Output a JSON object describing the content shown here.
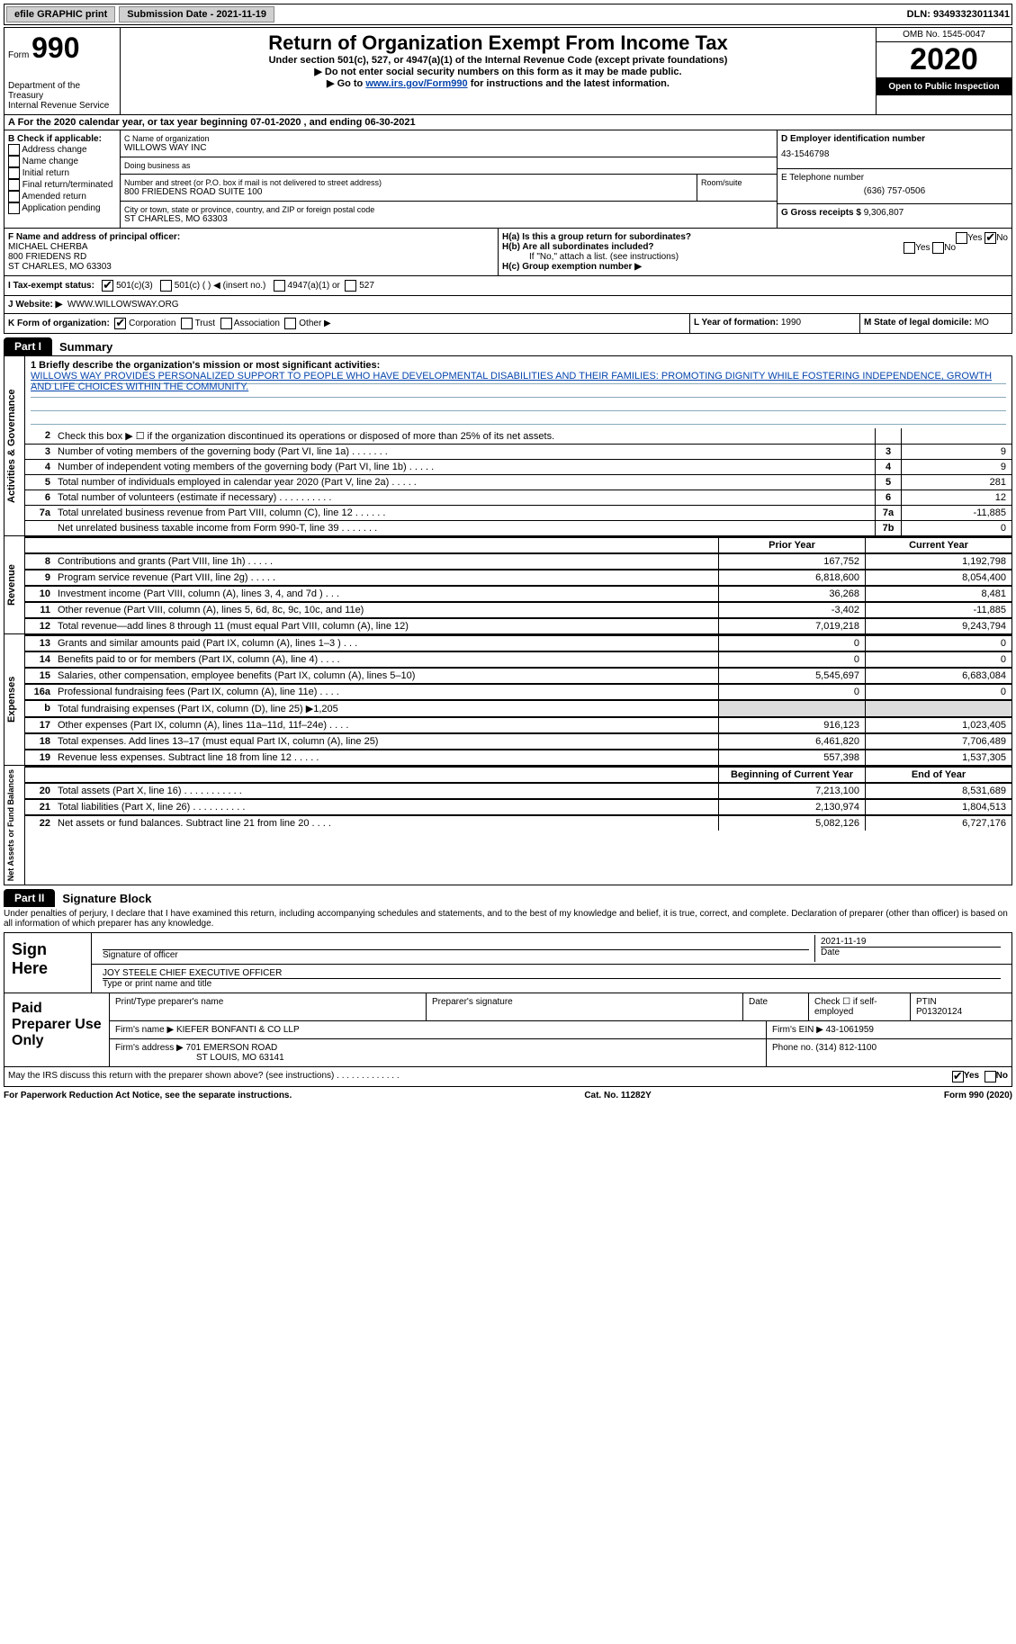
{
  "topbar": {
    "efile": "efile GRAPHIC print",
    "submission_label": "Submission Date - 2021-11-19",
    "dln_label": "DLN: 93493323011341"
  },
  "header": {
    "form_label": "Form",
    "form_number": "990",
    "dept1": "Department of the Treasury",
    "dept2": "Internal Revenue Service",
    "title": "Return of Organization Exempt From Income Tax",
    "subtitle": "Under section 501(c), 527, or 4947(a)(1) of the Internal Revenue Code (except private foundations)",
    "note1": "▶ Do not enter social security numbers on this form as it may be made public.",
    "note2_pre": "▶ Go to ",
    "note2_link": "www.irs.gov/Form990",
    "note2_post": " for instructions and the latest information.",
    "omb": "OMB No. 1545-0047",
    "year": "2020",
    "inspect": "Open to Public Inspection"
  },
  "row_a": "A For the 2020 calendar year, or tax year beginning 07-01-2020    , and ending 06-30-2021",
  "col_b": {
    "hdr": "B Check if applicable:",
    "opts": [
      "Address change",
      "Name change",
      "Initial return",
      "Final return/terminated",
      "Amended return",
      "Application pending"
    ]
  },
  "col_c": {
    "name_lbl": "C Name of organization",
    "name": "WILLOWS WAY INC",
    "dba_lbl": "Doing business as",
    "dba": "",
    "addr_lbl": "Number and street (or P.O. box if mail is not delivered to street address)",
    "addr": "800 FRIEDENS ROAD SUITE 100",
    "room_lbl": "Room/suite",
    "city_lbl": "City or town, state or province, country, and ZIP or foreign postal code",
    "city": "ST CHARLES, MO  63303"
  },
  "col_de": {
    "d_lbl": "D Employer identification number",
    "d_val": "43-1546798",
    "e_lbl": "E Telephone number",
    "e_val": "(636) 757-0506",
    "g_lbl": "G Gross receipts $",
    "g_val": "9,306,807"
  },
  "f": {
    "lbl": "F Name and address of principal officer:",
    "name": "MICHAEL CHERBA",
    "addr1": "800 FRIEDENS RD",
    "addr2": "ST CHARLES, MO  63303"
  },
  "h": {
    "a": "H(a)  Is this a group return for subordinates?",
    "a_yes": "Yes",
    "a_no": "No",
    "b": "H(b)  Are all subordinates included?",
    "b_yes": "Yes",
    "b_no": "No",
    "b_note": "If \"No,\" attach a list. (see instructions)",
    "c": "H(c)  Group exemption number ▶"
  },
  "i": {
    "lbl": "I   Tax-exempt status:",
    "o1": "501(c)(3)",
    "o2": "501(c) (  ) ◀ (insert no.)",
    "o3": "4947(a)(1) or",
    "o4": "527"
  },
  "j": {
    "lbl": "J   Website: ▶",
    "val": "WWW.WILLOWSWAY.ORG"
  },
  "k": {
    "lbl": "K Form of organization:",
    "o1": "Corporation",
    "o2": "Trust",
    "o3": "Association",
    "o4": "Other ▶"
  },
  "l": {
    "lbl": "L Year of formation:",
    "val": "1990"
  },
  "m": {
    "lbl": "M State of legal domicile:",
    "val": "MO"
  },
  "part1": {
    "tab": "Part I",
    "title": "Summary"
  },
  "mission": {
    "lbl": "1  Briefly describe the organization's mission or most significant activities:",
    "txt": "WILLOWS WAY PROVIDES PERSONALIZED SUPPORT TO PEOPLE WHO HAVE DEVELOPMENTAL DISABILITIES AND THEIR FAMILIES: PROMOTING DIGNITY WHILE FOSTERING INDEPENDENCE, GROWTH AND LIFE CHOICES WITHIN THE COMMUNITY."
  },
  "gov_lines": [
    {
      "n": "2",
      "t": "Check this box ▶ ☐  if the organization discontinued its operations or disposed of more than 25% of its net assets.",
      "b": "",
      "v": ""
    },
    {
      "n": "3",
      "t": "Number of voting members of the governing body (Part VI, line 1a)   .    .    .    .    .    .    .",
      "b": "3",
      "v": "9"
    },
    {
      "n": "4",
      "t": "Number of independent voting members of the governing body (Part VI, line 1b)  .    .    .    .    .",
      "b": "4",
      "v": "9"
    },
    {
      "n": "5",
      "t": "Total number of individuals employed in calendar year 2020 (Part V, line 2a)   .    .    .    .    .",
      "b": "5",
      "v": "281"
    },
    {
      "n": "6",
      "t": "Total number of volunteers (estimate if necessary)   .    .    .    .    .    .    .    .    .    .",
      "b": "6",
      "v": "12"
    },
    {
      "n": "7a",
      "t": "Total unrelated business revenue from Part VIII, column (C), line 12   .    .    .    .    .    .",
      "b": "7a",
      "v": "-11,885"
    },
    {
      "n": "",
      "t": "Net unrelated business taxable income from Form 990-T, line 39  .    .    .    .    .    .    .",
      "b": "7b",
      "v": "0"
    }
  ],
  "pycy_hdr": {
    "py": "Prior Year",
    "cy": "Current Year"
  },
  "rev_lines": [
    {
      "n": "8",
      "t": "Contributions and grants (Part VIII, line 1h)   .    .    .    .    .",
      "py": "167,752",
      "cy": "1,192,798"
    },
    {
      "n": "9",
      "t": "Program service revenue (Part VIII, line 2g)   .    .    .    .    .",
      "py": "6,818,600",
      "cy": "8,054,400"
    },
    {
      "n": "10",
      "t": "Investment income (Part VIII, column (A), lines 3, 4, and 7d )   .    .    .",
      "py": "36,268",
      "cy": "8,481"
    },
    {
      "n": "11",
      "t": "Other revenue (Part VIII, column (A), lines 5, 6d, 8c, 9c, 10c, and 11e)",
      "py": "-3,402",
      "cy": "-11,885"
    },
    {
      "n": "12",
      "t": "Total revenue—add lines 8 through 11 (must equal Part VIII, column (A), line 12)",
      "py": "7,019,218",
      "cy": "9,243,794"
    }
  ],
  "exp_lines": [
    {
      "n": "13",
      "t": "Grants and similar amounts paid (Part IX, column (A), lines 1–3 )   .    .    .",
      "py": "0",
      "cy": "0"
    },
    {
      "n": "14",
      "t": "Benefits paid to or for members (Part IX, column (A), line 4)   .    .    .    .",
      "py": "0",
      "cy": "0"
    },
    {
      "n": "15",
      "t": "Salaries, other compensation, employee benefits (Part IX, column (A), lines 5–10)",
      "py": "5,545,697",
      "cy": "6,683,084"
    },
    {
      "n": "16a",
      "t": "Professional fundraising fees (Part IX, column (A), line 11e)   .    .    .    .",
      "py": "0",
      "cy": "0"
    },
    {
      "n": "b",
      "t": "Total fundraising expenses (Part IX, column (D), line 25) ▶1,205",
      "py": "",
      "cy": "",
      "shade": true
    },
    {
      "n": "17",
      "t": "Other expenses (Part IX, column (A), lines 11a–11d, 11f–24e)   .    .    .    .",
      "py": "916,123",
      "cy": "1,023,405"
    },
    {
      "n": "18",
      "t": "Total expenses. Add lines 13–17 (must equal Part IX, column (A), line 25)",
      "py": "6,461,820",
      "cy": "7,706,489"
    },
    {
      "n": "19",
      "t": "Revenue less expenses. Subtract line 18 from line 12   .    .    .    .    .",
      "py": "557,398",
      "cy": "1,537,305"
    }
  ],
  "na_hdr": {
    "py": "Beginning of Current Year",
    "cy": "End of Year"
  },
  "na_lines": [
    {
      "n": "20",
      "t": "Total assets (Part X, line 16)   .    .    .    .    .    .    .    .    .    .    .",
      "py": "7,213,100",
      "cy": "8,531,689"
    },
    {
      "n": "21",
      "t": "Total liabilities (Part X, line 26)   .    .    .    .    .    .    .    .    .    .",
      "py": "2,130,974",
      "cy": "1,804,513"
    },
    {
      "n": "22",
      "t": "Net assets or fund balances. Subtract line 21 from line 20   .    .    .    .",
      "py": "5,082,126",
      "cy": "6,727,176"
    }
  ],
  "vlabels": {
    "gov": "Activities & Governance",
    "rev": "Revenue",
    "exp": "Expenses",
    "na": "Net Assets or Fund Balances"
  },
  "part2": {
    "tab": "Part II",
    "title": "Signature Block"
  },
  "penalty": "Under penalties of perjury, I declare that I have examined this return, including accompanying schedules and statements, and to the best of my knowledge and belief, it is true, correct, and complete. Declaration of preparer (other than officer) is based on all information of which preparer has any knowledge.",
  "sign": {
    "here": "Sign Here",
    "sig_lbl": "Signature of officer",
    "date_lbl": "Date",
    "date": "2021-11-19",
    "name": "JOY STEELE  CHIEF EXECUTIVE OFFICER",
    "name_lbl": "Type or print name and title"
  },
  "paid": {
    "lbl": "Paid Preparer Use Only",
    "h1": "Print/Type preparer's name",
    "h2": "Preparer's signature",
    "h3": "Date",
    "h4": "Check ☐ if self-employed",
    "h5": "PTIN",
    "ptin": "P01320124",
    "firm_lbl": "Firm's name   ▶",
    "firm": "KIEFER BONFANTI & CO LLP",
    "ein_lbl": "Firm's EIN ▶",
    "ein": "43-1061959",
    "addr_lbl": "Firm's address ▶",
    "addr1": "701 EMERSON ROAD",
    "addr2": "ST LOUIS, MO  63141",
    "phone_lbl": "Phone no.",
    "phone": "(314) 812-1100"
  },
  "discuss": "May the IRS discuss this return with the preparer shown above? (see instructions)   .    .    .    .    .    .    .    .    .    .    .    .    .",
  "discuss_yes": "Yes",
  "discuss_no": "No",
  "footer": {
    "l": "For Paperwork Reduction Act Notice, see the separate instructions.",
    "c": "Cat. No. 11282Y",
    "r": "Form 990 (2020)"
  }
}
